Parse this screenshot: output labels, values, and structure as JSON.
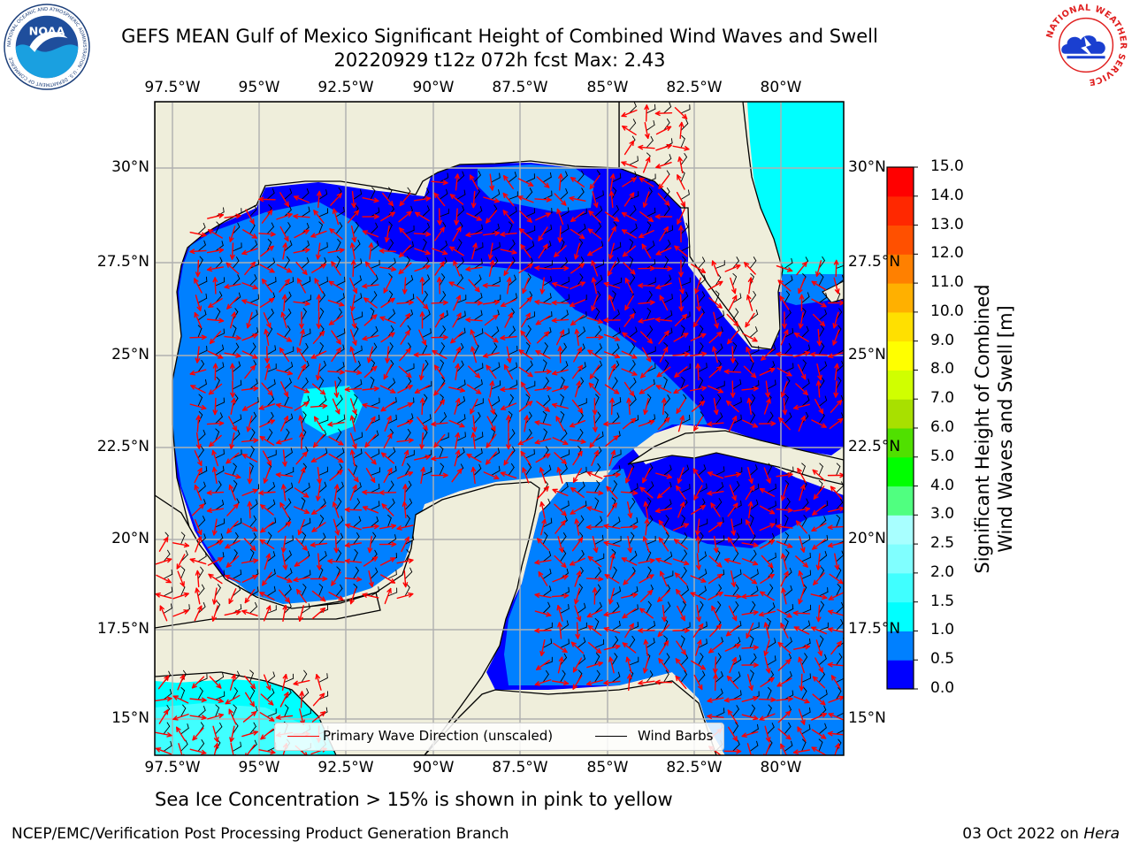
{
  "title_line1": "GEFS MEAN Gulf of Mexico Significant Height of Combined Wind Waves and Swell",
  "title_line2": "20220929 t12z 072h fcst   Max: 2.43",
  "noaa_logo_text": "NOAA",
  "noaa_ring_text": "NATIONAL OCEANIC AND ATMOSPHERIC ADMINISTRATION · U.S. DEPARTMENT OF COMMERCE",
  "nws_ring_text": "NATIONAL WEATHER SERVICE",
  "lon_labels": [
    "97.5°W",
    "95°W",
    "92.5°W",
    "90°W",
    "87.5°W",
    "85°W",
    "82.5°W",
    "80°W"
  ],
  "lat_labels": [
    "30°N",
    "27.5°N",
    "25°N",
    "22.5°N",
    "20°N",
    "17.5°N",
    "15°N"
  ],
  "colorbar": {
    "title_line1": "Significant Height of Combined",
    "title_line2": "Wind Waves and Swell [m]",
    "tick_labels": [
      "0.0",
      "0.5",
      "1.0",
      "1.5",
      "2.0",
      "2.5",
      "3.0",
      "4.0",
      "5.0",
      "6.0",
      "7.0",
      "8.0",
      "9.0",
      "10.0",
      "11.0",
      "12.0",
      "13.0",
      "14.0",
      "15.0"
    ],
    "colors": [
      "#0000ff",
      "#0080ff",
      "#00ffff",
      "#40ffff",
      "#80ffff",
      "#a8ffff",
      "#50ff80",
      "#00ff00",
      "#50e000",
      "#a8e000",
      "#d0ff00",
      "#ffff00",
      "#ffe000",
      "#ffb000",
      "#ff8000",
      "#ff5000",
      "#ff2800",
      "#ff0000"
    ]
  },
  "legend": {
    "wave_label": "Primary Wave Direction (unscaled)",
    "wave_color": "#ff0000",
    "barb_label": "Wind Barbs",
    "barb_color": "#000000"
  },
  "note": "Sea Ice Concentration > 15% is shown in pink to yellow",
  "footer_left": "NCEP/EMC/Verification Post Processing Product Generation Branch",
  "footer_right_prefix": "03 Oct 2022 on ",
  "footer_right_machine": "Hera",
  "colors": {
    "land": "#efeedb",
    "sea_low": "#0000ff",
    "sea_mid": "#0080ff",
    "sea_high": "#00ffff",
    "grid": "#b0b0b0"
  }
}
